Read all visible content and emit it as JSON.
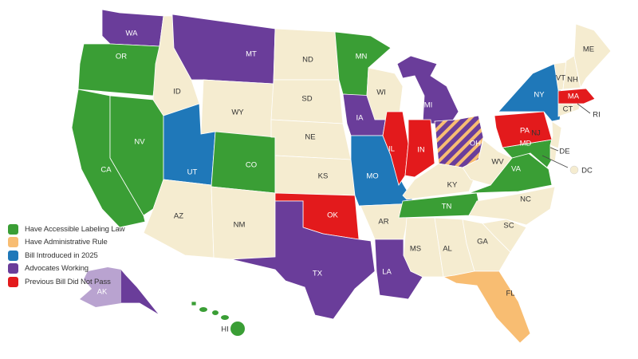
{
  "legend": [
    {
      "key": "law",
      "label": "Have Accessible Labeling Law",
      "color": "#3a9e35"
    },
    {
      "key": "rule",
      "label": "Have Administrative Rule",
      "color": "#f8bd72"
    },
    {
      "key": "bill",
      "label": "Bill Introduced in 2025",
      "color": "#1f78b9"
    },
    {
      "key": "advocates",
      "label": "Advocates Working",
      "color": "#6a3d9a"
    },
    {
      "key": "failed",
      "label": "Previous Bill Did Not Pass",
      "color": "#e31a1c"
    }
  ],
  "no_status_color": "#f5ecd0",
  "states": [
    {
      "abbr": "WA",
      "status": "advocates"
    },
    {
      "abbr": "OR",
      "status": "law"
    },
    {
      "abbr": "CA",
      "status": "law"
    },
    {
      "abbr": "NV",
      "status": "law"
    },
    {
      "abbr": "ID",
      "status": "none"
    },
    {
      "abbr": "MT",
      "status": "advocates"
    },
    {
      "abbr": "WY",
      "status": "none"
    },
    {
      "abbr": "UT",
      "status": "bill"
    },
    {
      "abbr": "AZ",
      "status": "none"
    },
    {
      "abbr": "CO",
      "status": "law"
    },
    {
      "abbr": "NM",
      "status": "none"
    },
    {
      "abbr": "ND",
      "status": "none"
    },
    {
      "abbr": "SD",
      "status": "none"
    },
    {
      "abbr": "NE",
      "status": "none"
    },
    {
      "abbr": "KS",
      "status": "none"
    },
    {
      "abbr": "OK",
      "status": "failed"
    },
    {
      "abbr": "TX",
      "status": "advocates"
    },
    {
      "abbr": "MN",
      "status": "law"
    },
    {
      "abbr": "IA",
      "status": "advocates"
    },
    {
      "abbr": "MO",
      "status": "bill"
    },
    {
      "abbr": "AR",
      "status": "none"
    },
    {
      "abbr": "LA",
      "status": "advocates"
    },
    {
      "abbr": "WI",
      "status": "none"
    },
    {
      "abbr": "IL",
      "status": "failed"
    },
    {
      "abbr": "MI",
      "status": "advocates"
    },
    {
      "abbr": "IN",
      "status": "failed"
    },
    {
      "abbr": "OH",
      "status": "advocates+rule"
    },
    {
      "abbr": "KY",
      "status": "none"
    },
    {
      "abbr": "TN",
      "status": "law"
    },
    {
      "abbr": "MS",
      "status": "none"
    },
    {
      "abbr": "AL",
      "status": "none"
    },
    {
      "abbr": "GA",
      "status": "none"
    },
    {
      "abbr": "FL",
      "status": "rule"
    },
    {
      "abbr": "SC",
      "status": "none"
    },
    {
      "abbr": "NC",
      "status": "none"
    },
    {
      "abbr": "VA",
      "status": "law"
    },
    {
      "abbr": "WV",
      "status": "none"
    },
    {
      "abbr": "MD",
      "status": "law"
    },
    {
      "abbr": "DE",
      "status": "none"
    },
    {
      "abbr": "DC",
      "status": "none"
    },
    {
      "abbr": "PA",
      "status": "failed"
    },
    {
      "abbr": "NJ",
      "status": "none"
    },
    {
      "abbr": "NY",
      "status": "bill"
    },
    {
      "abbr": "CT",
      "status": "none"
    },
    {
      "abbr": "RI",
      "status": "none"
    },
    {
      "abbr": "MA",
      "status": "failed"
    },
    {
      "abbr": "VT",
      "status": "none"
    },
    {
      "abbr": "NH",
      "status": "none"
    },
    {
      "abbr": "ME",
      "status": "none"
    },
    {
      "abbr": "AK",
      "status": "advocates"
    },
    {
      "abbr": "HI",
      "status": "law"
    }
  ]
}
